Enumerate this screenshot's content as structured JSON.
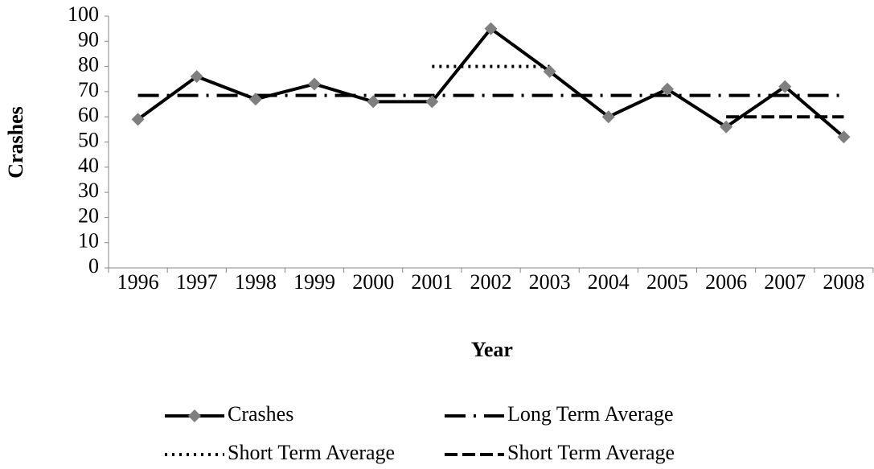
{
  "chart_data": {
    "type": "line",
    "x_label": "Year",
    "y_label": "Crashes",
    "categories": [
      "1996",
      "1997",
      "1998",
      "1999",
      "2000",
      "2001",
      "2002",
      "2003",
      "2004",
      "2005",
      "2006",
      "2007",
      "2008"
    ],
    "series": [
      {
        "name": "Crashes",
        "color": "#000000",
        "style": "solid",
        "marker": "diamond",
        "marker_color": "#7f7f7f",
        "values": [
          59,
          76,
          67,
          73,
          66,
          66,
          95,
          78,
          60,
          71,
          56,
          72,
          52
        ]
      },
      {
        "name": "Long Term Average",
        "color": "#000000",
        "style": "dash-dot",
        "values": [
          68.5,
          68.5,
          68.5,
          68.5,
          68.5,
          68.5,
          68.5,
          68.5,
          68.5,
          68.5,
          68.5,
          68.5,
          68.5
        ]
      },
      {
        "name": "Short Term Average",
        "color": "#000000",
        "style": "dot",
        "values": [
          null,
          null,
          null,
          null,
          null,
          80,
          80,
          80,
          null,
          null,
          null,
          null,
          null
        ]
      },
      {
        "name": "Short Term Average",
        "color": "#000000",
        "style": "dash",
        "values": [
          null,
          null,
          null,
          null,
          null,
          null,
          null,
          null,
          null,
          null,
          60,
          60,
          60
        ]
      }
    ],
    "ylim": [
      0,
      100
    ],
    "yticks": [
      0,
      10,
      20,
      30,
      40,
      50,
      60,
      70,
      80,
      90,
      100
    ],
    "grid": false
  }
}
